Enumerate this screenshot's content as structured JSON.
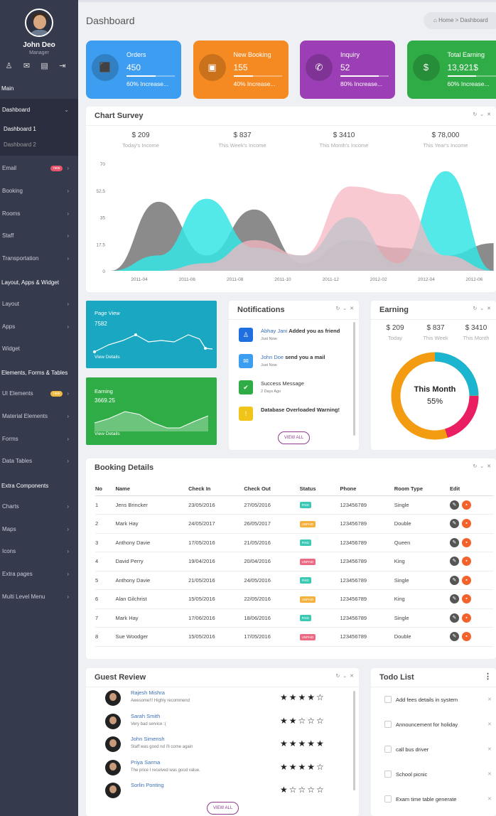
{
  "sidebar": {
    "user": {
      "name": "John Deo",
      "role": "Manager"
    },
    "headers": {
      "main": "Main",
      "layout": "Layout, Apps & Widget",
      "elements": "Elements, Forms & Tables",
      "extra": "Extra Components"
    },
    "dashboard": {
      "label": "Dashboard",
      "sub1": "Dashboard 1",
      "sub2": "Dashboard 2"
    },
    "items": [
      {
        "label": "Email",
        "badge": "new"
      },
      {
        "label": "Booking"
      },
      {
        "label": "Rooms"
      },
      {
        "label": "Staff"
      },
      {
        "label": "Transportation"
      }
    ],
    "items2": [
      {
        "label": "Layout"
      },
      {
        "label": "Apps"
      },
      {
        "label": "Widget"
      }
    ],
    "items3": [
      {
        "label": "UI Elements",
        "badge": "new"
      },
      {
        "label": "Material Elements"
      },
      {
        "label": "Forms"
      },
      {
        "label": "Data Tables"
      }
    ],
    "items4": [
      {
        "label": "Charts"
      },
      {
        "label": "Maps"
      },
      {
        "label": "Icons"
      },
      {
        "label": "Extra pages"
      },
      {
        "label": "Multi Level Menu"
      }
    ]
  },
  "page": {
    "title": "Dashboard",
    "breadcrumb_home": "Home",
    "breadcrumb_current": "Dashboard"
  },
  "stats": [
    {
      "label": "Orders",
      "value": "450",
      "sub": "60% Increase...",
      "progress": 0.6,
      "color": "#3d9df0",
      "icon": "box-icon"
    },
    {
      "label": "New Booking",
      "value": "155",
      "sub": "40% Increase...",
      "progress": 0.4,
      "color": "#f68a22",
      "icon": "briefcase-icon"
    },
    {
      "label": "Inquiry",
      "value": "52",
      "sub": "80% Increase...",
      "progress": 0.8,
      "color": "#9c3fb6",
      "icon": "phone-icon"
    },
    {
      "label": "Total Earning",
      "value": "13,921$",
      "sub": "60% Increase...",
      "progress": 0.6,
      "color": "#2fac45",
      "icon": "dollar-icon"
    }
  ],
  "survey": {
    "title": "Chart Survey",
    "incomes": [
      {
        "value": "$ 209",
        "label": "Today's Income"
      },
      {
        "value": "$ 837",
        "label": "This Week's Income"
      },
      {
        "value": "$ 3410",
        "label": "This Month's Income"
      },
      {
        "value": "$ 78,000",
        "label": "This Year's Income"
      }
    ]
  },
  "chart_data": {
    "type": "area",
    "title": "",
    "xlabel": "",
    "ylabel": "",
    "ylim": [
      0,
      70
    ],
    "yticks": [
      "0",
      "17.5",
      "35",
      "52.5",
      "70"
    ],
    "categories": [
      "2011-04",
      "2011-06",
      "2011-08",
      "2011-10",
      "2011-12",
      "2012-02",
      "2012-04",
      "2012-06",
      "2012-08"
    ],
    "series": [
      {
        "color": "#777777",
        "values": [
          0,
          45,
          10,
          40,
          5,
          20,
          15,
          10,
          18
        ]
      },
      {
        "color": "#35e5e5",
        "values": [
          0,
          10,
          47,
          15,
          10,
          35,
          5,
          65,
          0
        ]
      },
      {
        "color": "#f6b7c2",
        "values": [
          0,
          0,
          5,
          20,
          10,
          55,
          50,
          10,
          0
        ]
      }
    ]
  },
  "pageview": {
    "title": "Page View",
    "value": "7582",
    "link": "View Details"
  },
  "earning_tile": {
    "title": "Earning",
    "value": "3669.25",
    "link": "View Details"
  },
  "notifications": {
    "title": "Notifications",
    "view_all": "VIEW ALL",
    "items": [
      {
        "name": "Abhay Jani",
        "text": "Added you as friend",
        "time": "Just Now",
        "color": "#1f6fe0",
        "icon": "user-icon"
      },
      {
        "name": "John Doe",
        "text": "send you a mail",
        "time": "Just Now",
        "color": "#3d9df0",
        "icon": "mail-icon"
      },
      {
        "name": "",
        "text": "Success Message",
        "time": "2 Days Ago",
        "color": "#2fac45",
        "icon": "check-icon"
      },
      {
        "name": "",
        "text": "Database Overloaded Warning!",
        "time": "",
        "color": "#f0c419",
        "icon": "warning-icon"
      }
    ]
  },
  "earning": {
    "title": "Earning",
    "cols": [
      {
        "value": "$ 209",
        "label": "Today"
      },
      {
        "value": "$ 837",
        "label": "This Week"
      },
      {
        "value": "$ 3410",
        "label": "This Month"
      }
    ],
    "donut_title": "This Month",
    "donut_value": "55%"
  },
  "booking": {
    "title": "Booking Details",
    "headers": [
      "No",
      "Name",
      "Check In",
      "Check Out",
      "Status",
      "Phone",
      "Room Type",
      "Edit"
    ],
    "rows": [
      [
        "1",
        "Jens Brincker",
        "23/05/2016",
        "27/05/2016",
        "PAID",
        "123456789",
        "Single"
      ],
      [
        "2",
        "Mark Hay",
        "24/05/2017",
        "26/05/2017",
        "UNPAID",
        "123456789",
        "Double"
      ],
      [
        "3",
        "Anthony Davie",
        "17/05/2016",
        "21/05/2016",
        "PAID",
        "123456789",
        "Queen"
      ],
      [
        "4",
        "David Perry",
        "19/04/2016",
        "20/04/2016",
        "UNPAID",
        "123456789",
        "King"
      ],
      [
        "5",
        "Anthony Davie",
        "21/05/2016",
        "24/05/2016",
        "PAID",
        "123456789",
        "Single"
      ],
      [
        "6",
        "Alan Gilchrist",
        "15/05/2016",
        "22/05/2016",
        "UNPAID",
        "123456789",
        "King"
      ],
      [
        "7",
        "Mark Hay",
        "17/06/2016",
        "18/06/2016",
        "PAID",
        "123456789",
        "Single"
      ],
      [
        "8",
        "Sue Woodger",
        "15/05/2016",
        "17/05/2016",
        "UNPAID",
        "123456789",
        "Double"
      ]
    ]
  },
  "reviews": {
    "title": "Guest Review",
    "view_all": "VIEW ALL",
    "items": [
      {
        "name": "Rajesh Mishra",
        "text": "Awesome!!! Highly recommend",
        "stars": "★★★★☆"
      },
      {
        "name": "Sarah Smith",
        "text": "Very bad service :(",
        "stars": "★★☆☆☆"
      },
      {
        "name": "John Simensh",
        "text": "Staff was good nd i'll come again",
        "stars": "★★★★★"
      },
      {
        "name": "Priya Sarma",
        "text": "The price I received was good value.",
        "stars": "★★★★☆"
      },
      {
        "name": "Sorlin Ponting",
        "text": "",
        "stars": "★☆☆☆☆"
      }
    ]
  },
  "todo": {
    "title": "Todo List",
    "items": [
      "Add fees details in system",
      "Announcement for holiday",
      "call bus driver",
      "School picnic",
      "Exam time table generate"
    ]
  }
}
